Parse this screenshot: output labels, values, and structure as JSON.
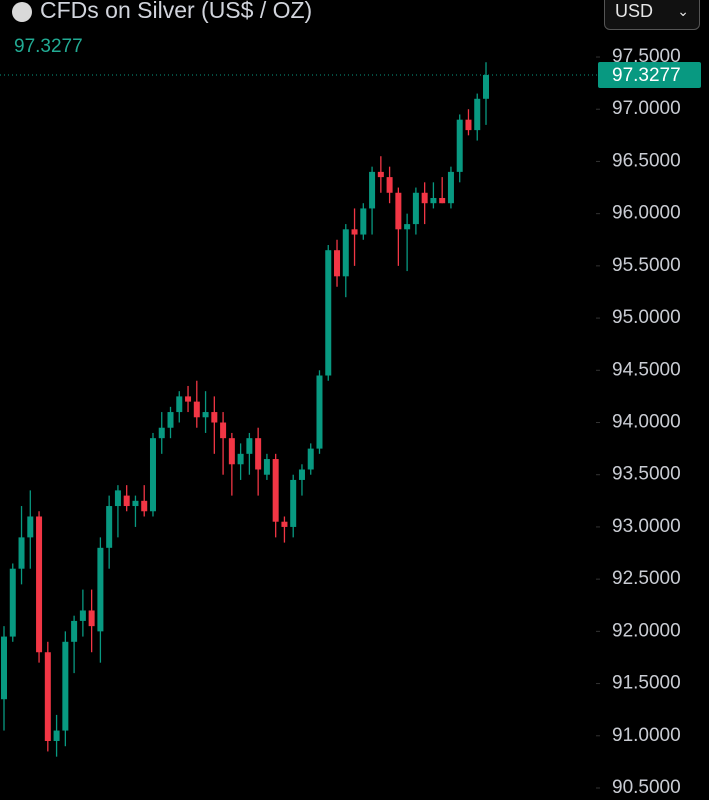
{
  "chart_data": {
    "type": "candlestick",
    "title": "CFDs on Silver (US$ / OZ)",
    "currency": "USD",
    "last_price": 97.3277,
    "up_color": "#089981",
    "down_color": "#f23645",
    "ylim": [
      90.385,
      98.046
    ],
    "yticks": [
      {
        "value": 97.5,
        "label": "97.5000"
      },
      {
        "value": 97,
        "label": "97.0000"
      },
      {
        "value": 96.5,
        "label": "96.5000"
      },
      {
        "value": 96,
        "label": "96.0000"
      },
      {
        "value": 95.5,
        "label": "95.5000"
      },
      {
        "value": 95,
        "label": "95.0000"
      },
      {
        "value": 94.5,
        "label": "94.5000"
      },
      {
        "value": 94,
        "label": "94.0000"
      },
      {
        "value": 93.5,
        "label": "93.5000"
      },
      {
        "value": 93,
        "label": "93.0000"
      },
      {
        "value": 92.5,
        "label": "92.5000"
      },
      {
        "value": 92,
        "label": "92.0000"
      },
      {
        "value": 91.5,
        "label": "91.5000"
      },
      {
        "value": 91,
        "label": "91.0000"
      },
      {
        "value": 90.5,
        "label": "90.5000"
      }
    ],
    "open": [
      91.35,
      91.95,
      92.6,
      92.9,
      93.1,
      91.8,
      90.95,
      91.05,
      91.9,
      92.1,
      92.2,
      92.0,
      92.8,
      93.2,
      93.3,
      93.2,
      93.25,
      93.15,
      93.85,
      93.95,
      94.1,
      94.25,
      94.2,
      94.05,
      94.1,
      94.0,
      93.85,
      93.6,
      93.7,
      93.85,
      93.5,
      93.65,
      93.05,
      93.0,
      93.45,
      93.55,
      93.75,
      94.45,
      95.65,
      95.4,
      95.85,
      95.8,
      96.05,
      96.4,
      96.35,
      96.2,
      95.85,
      95.9,
      96.2,
      96.1,
      96.15,
      96.1,
      96.4,
      96.9,
      96.8,
      97.1
    ],
    "high": [
      92.05,
      92.65,
      93.2,
      93.35,
      93.15,
      91.9,
      91.2,
      92.0,
      92.15,
      92.4,
      92.4,
      92.9,
      93.3,
      93.4,
      93.4,
      93.3,
      93.4,
      93.9,
      94.1,
      94.15,
      94.3,
      94.35,
      94.4,
      94.3,
      94.25,
      94.1,
      93.9,
      93.8,
      93.9,
      93.95,
      93.7,
      93.7,
      93.1,
      93.5,
      93.6,
      93.8,
      94.5,
      95.7,
      95.75,
      95.9,
      96.05,
      96.1,
      96.45,
      96.55,
      96.45,
      96.25,
      96.0,
      96.25,
      96.3,
      96.3,
      96.35,
      96.45,
      96.95,
      97.0,
      97.15,
      97.45
    ],
    "low": [
      91.05,
      91.9,
      92.45,
      92.6,
      91.7,
      90.85,
      90.8,
      90.9,
      91.6,
      91.95,
      91.8,
      91.7,
      92.6,
      92.9,
      93.15,
      93.0,
      93.1,
      93.1,
      93.7,
      93.85,
      94.0,
      94.1,
      93.95,
      93.9,
      93.7,
      93.5,
      93.3,
      93.45,
      93.5,
      93.3,
      93.45,
      92.9,
      92.85,
      92.9,
      93.3,
      93.5,
      93.7,
      94.4,
      95.3,
      95.2,
      95.5,
      95.75,
      95.8,
      96.2,
      96.1,
      95.5,
      95.45,
      95.8,
      95.9,
      96.05,
      96.1,
      96.05,
      96.3,
      96.75,
      96.7,
      96.85
    ],
    "close": [
      91.95,
      92.6,
      92.9,
      93.1,
      91.8,
      90.95,
      91.05,
      91.9,
      92.1,
      92.2,
      92.05,
      92.8,
      93.2,
      93.35,
      93.2,
      93.25,
      93.15,
      93.85,
      93.95,
      94.1,
      94.25,
      94.2,
      94.05,
      94.1,
      94.0,
      93.85,
      93.6,
      93.7,
      93.85,
      93.55,
      93.65,
      93.05,
      93.0,
      93.45,
      93.55,
      93.75,
      94.45,
      95.65,
      95.4,
      95.85,
      95.8,
      96.05,
      96.4,
      96.35,
      96.2,
      95.85,
      95.9,
      96.2,
      96.1,
      96.15,
      96.1,
      96.4,
      96.9,
      96.8,
      97.1,
      97.3277
    ]
  }
}
